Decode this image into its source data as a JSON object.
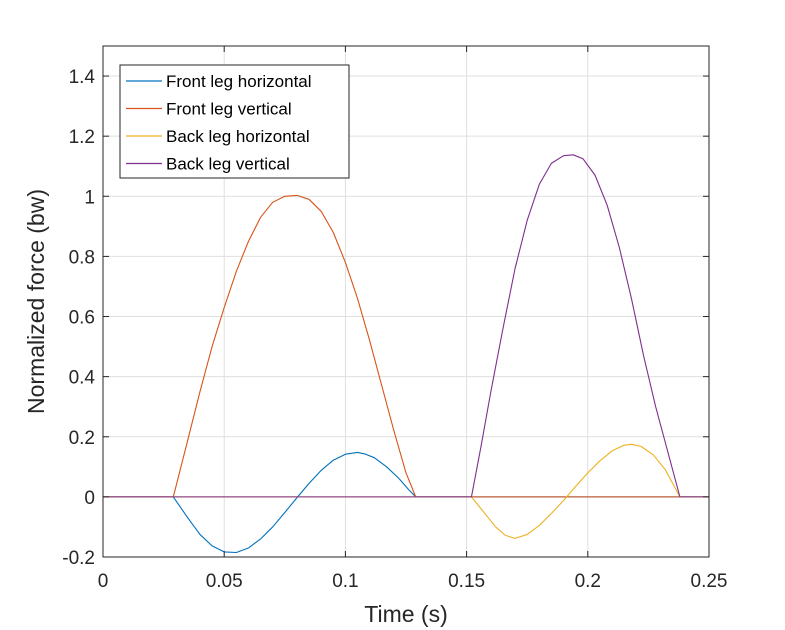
{
  "chart_data": {
    "type": "line",
    "xlabel": "Time (s)",
    "ylabel": "Normalized force (bw)",
    "xlim": [
      0,
      0.25
    ],
    "ylim": [
      -0.2,
      1.5
    ],
    "xticks": [
      0,
      0.05,
      0.1,
      0.15,
      0.2,
      0.25
    ],
    "xtick_labels": [
      "0",
      "0.05",
      "0.1",
      "0.15",
      "0.2",
      "0.25"
    ],
    "yticks": [
      -0.2,
      0,
      0.2,
      0.4,
      0.6,
      0.8,
      1,
      1.2,
      1.4
    ],
    "ytick_labels": [
      "-0.2",
      "0",
      "0.2",
      "0.4",
      "0.6",
      "0.8",
      "1",
      "1.2",
      "1.4"
    ],
    "grid": true,
    "legend_position": "top-left",
    "series": [
      {
        "name": "Front leg horizontal",
        "color": "#0072BD",
        "x": [
          0,
          0.029,
          0.035,
          0.04,
          0.045,
          0.05,
          0.055,
          0.06,
          0.065,
          0.07,
          0.075,
          0.08,
          0.085,
          0.09,
          0.095,
          0.1,
          0.105,
          0.108,
          0.112,
          0.117,
          0.122,
          0.126,
          0.129,
          0.135,
          0.15,
          0.2,
          0.25
        ],
        "y": [
          0,
          0,
          -0.07,
          -0.125,
          -0.163,
          -0.183,
          -0.185,
          -0.17,
          -0.14,
          -0.1,
          -0.052,
          -0.003,
          0.045,
          0.088,
          0.122,
          0.142,
          0.148,
          0.143,
          0.13,
          0.1,
          0.062,
          0.025,
          0,
          0,
          0,
          0,
          0
        ]
      },
      {
        "name": "Front leg vertical",
        "color": "#D95319",
        "x": [
          0,
          0.029,
          0.035,
          0.04,
          0.045,
          0.05,
          0.055,
          0.06,
          0.065,
          0.07,
          0.075,
          0.08,
          0.085,
          0.09,
          0.095,
          0.1,
          0.105,
          0.11,
          0.115,
          0.12,
          0.125,
          0.129,
          0.135,
          0.15,
          0.2,
          0.25
        ],
        "y": [
          0,
          0,
          0.19,
          0.35,
          0.5,
          0.63,
          0.75,
          0.85,
          0.93,
          0.98,
          1.0,
          1.003,
          0.99,
          0.95,
          0.88,
          0.78,
          0.66,
          0.52,
          0.37,
          0.22,
          0.08,
          0,
          0,
          0,
          0,
          0
        ]
      },
      {
        "name": "Back leg horizontal",
        "color": "#EDB120",
        "x": [
          0,
          0.05,
          0.1,
          0.152,
          0.157,
          0.162,
          0.166,
          0.17,
          0.175,
          0.18,
          0.185,
          0.19,
          0.195,
          0.2,
          0.205,
          0.21,
          0.215,
          0.218,
          0.222,
          0.227,
          0.232,
          0.238,
          0.245,
          0.25
        ],
        "y": [
          0,
          0,
          0,
          0,
          -0.05,
          -0.1,
          -0.128,
          -0.138,
          -0.125,
          -0.095,
          -0.055,
          -0.012,
          0.035,
          0.08,
          0.12,
          0.153,
          0.172,
          0.175,
          0.168,
          0.14,
          0.09,
          0,
          0,
          0
        ]
      },
      {
        "name": "Back leg vertical",
        "color": "#7E2F8E",
        "x": [
          0,
          0.05,
          0.1,
          0.152,
          0.156,
          0.16,
          0.165,
          0.17,
          0.175,
          0.18,
          0.185,
          0.19,
          0.194,
          0.198,
          0.203,
          0.208,
          0.213,
          0.218,
          0.223,
          0.228,
          0.233,
          0.238,
          0.245,
          0.25
        ],
        "y": [
          0,
          0,
          0,
          0,
          0.17,
          0.35,
          0.56,
          0.76,
          0.92,
          1.04,
          1.11,
          1.135,
          1.138,
          1.125,
          1.07,
          0.97,
          0.83,
          0.66,
          0.47,
          0.3,
          0.15,
          0,
          0,
          0
        ]
      }
    ]
  }
}
